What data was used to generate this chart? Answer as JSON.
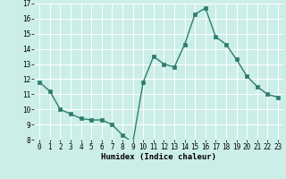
{
  "x": [
    0,
    1,
    2,
    3,
    4,
    5,
    6,
    7,
    8,
    9,
    10,
    11,
    12,
    13,
    14,
    15,
    16,
    17,
    18,
    19,
    20,
    21,
    22,
    23
  ],
  "y": [
    11.8,
    11.2,
    10.0,
    9.7,
    9.4,
    9.3,
    9.3,
    9.0,
    8.3,
    7.8,
    11.8,
    13.5,
    13.0,
    12.8,
    14.3,
    16.3,
    16.7,
    14.8,
    14.3,
    13.3,
    12.2,
    11.5,
    11.0,
    10.8
  ],
  "xlabel": "Humidex (Indice chaleur)",
  "ylim": [
    8,
    17
  ],
  "xlim": [
    -0.5,
    23.5
  ],
  "yticks": [
    8,
    9,
    10,
    11,
    12,
    13,
    14,
    15,
    16,
    17
  ],
  "xticks": [
    0,
    1,
    2,
    3,
    4,
    5,
    6,
    7,
    8,
    9,
    10,
    11,
    12,
    13,
    14,
    15,
    16,
    17,
    18,
    19,
    20,
    21,
    22,
    23
  ],
  "line_color": "#2e7d6e",
  "marker_color": "#2e7d6e",
  "bg_color": "#cceee8",
  "grid_color": "#ffffff",
  "xlabel_fontsize": 6.5,
  "tick_fontsize": 5.5
}
